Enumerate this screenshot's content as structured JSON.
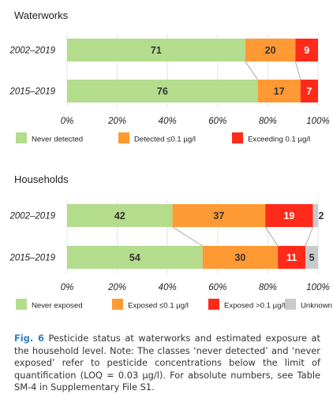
{
  "chart_data": [
    {
      "type": "bar",
      "orientation": "horizontal",
      "stacked": true,
      "title": "Waterworks",
      "categories": [
        "2002–2019",
        "2015–2019"
      ],
      "series": [
        {
          "name": "Never detected",
          "color": "#b3dc8c",
          "values": [
            71,
            76
          ]
        },
        {
          "name": "Detected  ≤0.1 µg/l",
          "color": "#ff9933",
          "values": [
            20,
            17
          ]
        },
        {
          "name": "Exceeding 0.1 µg/l",
          "color": "#ff2a1a",
          "values": [
            9,
            7
          ]
        }
      ],
      "xlim": [
        0,
        100
      ],
      "xticks": [
        "0%",
        "20%",
        "40%",
        "60%",
        "80%",
        "100%"
      ],
      "legend": "bottom"
    },
    {
      "type": "bar",
      "orientation": "horizontal",
      "stacked": true,
      "title": "Households",
      "categories": [
        "2002–2019",
        "2015–2019"
      ],
      "series": [
        {
          "name": "Never exposed",
          "color": "#b3dc8c",
          "values": [
            42,
            54
          ]
        },
        {
          "name": "Exposed  ≤0.1 µg/l",
          "color": "#ff9933",
          "values": [
            37,
            30
          ]
        },
        {
          "name": "Exposed >0.1 µg/l",
          "color": "#ff2a1a",
          "values": [
            19,
            11
          ]
        },
        {
          "name": "Unknown",
          "color": "#c8cbcc",
          "values": [
            2,
            5
          ]
        }
      ],
      "xlim": [
        0,
        100
      ],
      "xticks": [
        "0%",
        "20%",
        "40%",
        "60%",
        "80%",
        "100%"
      ],
      "legend": "bottom"
    }
  ],
  "caption": {
    "label": "Fig. 6",
    "text": " Pesticide status at waterworks and estimated exposure at the household level. Note: The classes ‘never detected’ and ‘never exposed’ refer to pesticide concentrations below the limit of quantification (LOQ = 0.03 µg/l). For absolute numbers, see Table SM-4 in Supplementary File S1."
  }
}
